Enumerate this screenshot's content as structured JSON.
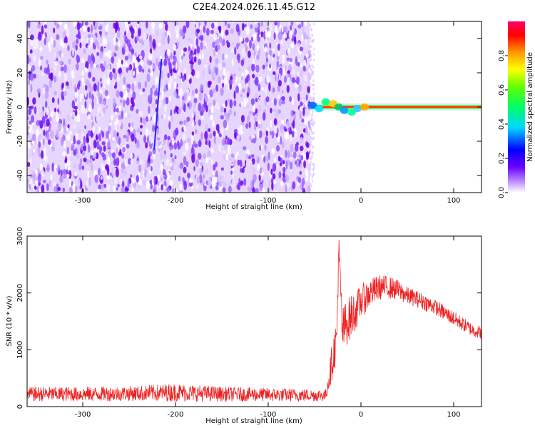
{
  "title": "C2E4.2024.026.11.45.G12",
  "colors": {
    "background_hot": "#ffffff",
    "purple_low": "#c7a8ff",
    "purple_high": "#6a00e8",
    "snr_line": "#ee2222"
  },
  "chart_data": [
    {
      "type": "heatmap",
      "title": "C2E4.2024.026.11.45.G12",
      "xlabel": "Height of straight line (km)",
      "ylabel": "Frequency (Hz)",
      "xlim": [
        -360,
        130
      ],
      "ylim": [
        -50,
        50
      ],
      "xticks": [
        -300,
        -200,
        -100,
        0,
        100
      ],
      "yticks": [
        -40,
        -20,
        0,
        20,
        40
      ],
      "colorbar": {
        "label": "Normalized spectral amplitude",
        "range": [
          0,
          1
        ],
        "ticks": [
          "0.0",
          "0.2",
          "0.4",
          "0.6",
          "0.8"
        ],
        "tick_values": [
          0.0,
          0.2,
          0.4,
          0.6,
          0.8
        ]
      },
      "regions": {
        "noise_region_x": [
          -360,
          -55
        ],
        "doppler_onset_x": -55,
        "faint_streak": {
          "x": [
            -223,
            -215
          ],
          "freq": [
            -25,
            28
          ]
        },
        "carrier_frequency_hz": 0
      }
    },
    {
      "type": "line",
      "xlabel": "Height of straight line (km)",
      "ylabel": "SNR (10 * v/v)",
      "xlim": [
        -360,
        130
      ],
      "ylim": [
        0,
        3000
      ],
      "xticks": [
        -300,
        -200,
        -100,
        0,
        100
      ],
      "yticks": [
        0,
        1000,
        2000,
        3000
      ],
      "series": [
        {
          "x": [
            -360,
            -300,
            -250,
            -200,
            -150,
            -100,
            -50,
            -38,
            -34,
            -30,
            -26,
            -24,
            -20,
            -15,
            -10,
            -5,
            0,
            10,
            20,
            30,
            40,
            50,
            60,
            80,
            100,
            120,
            130
          ],
          "y": [
            220,
            220,
            230,
            250,
            220,
            210,
            200,
            200,
            550,
            900,
            1200,
            2800,
            1300,
            1500,
            1600,
            1700,
            1850,
            2000,
            2100,
            2100,
            2050,
            1950,
            1900,
            1750,
            1550,
            1350,
            1300
          ],
          "noise_amplitude": [
            130,
            130,
            130,
            160,
            130,
            120,
            110,
            110,
            250,
            350,
            400,
            300,
            450,
            420,
            380,
            340,
            300,
            260,
            220,
            200,
            180,
            160,
            150,
            140,
            130,
            120,
            120
          ]
        }
      ]
    }
  ]
}
